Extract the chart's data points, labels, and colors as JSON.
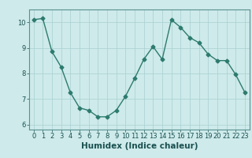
{
  "x": [
    0,
    1,
    2,
    3,
    4,
    5,
    6,
    7,
    8,
    9,
    10,
    11,
    12,
    13,
    14,
    15,
    16,
    17,
    18,
    19,
    20,
    21,
    22,
    23
  ],
  "y": [
    10.1,
    10.15,
    8.85,
    8.25,
    7.25,
    6.65,
    6.55,
    6.3,
    6.3,
    6.55,
    7.1,
    7.8,
    8.55,
    9.05,
    8.55,
    10.1,
    9.8,
    9.4,
    9.2,
    8.75,
    8.5,
    8.5,
    7.95,
    7.25
  ],
  "line_color": "#2d7b6e",
  "marker": "D",
  "marker_size": 2.5,
  "bg_color": "#ceeaea",
  "grid_color": "#a8d0d0",
  "xlabel": "Humidex (Indice chaleur)",
  "ylim": [
    5.8,
    10.5
  ],
  "xlim": [
    -0.5,
    23.5
  ],
  "yticks": [
    6,
    7,
    8,
    9,
    10
  ],
  "xticks": [
    0,
    1,
    2,
    3,
    4,
    5,
    6,
    7,
    8,
    9,
    10,
    11,
    12,
    13,
    14,
    15,
    16,
    17,
    18,
    19,
    20,
    21,
    22,
    23
  ],
  "tick_labelsize": 6,
  "xlabel_fontsize": 7.5,
  "line_width": 1.0
}
